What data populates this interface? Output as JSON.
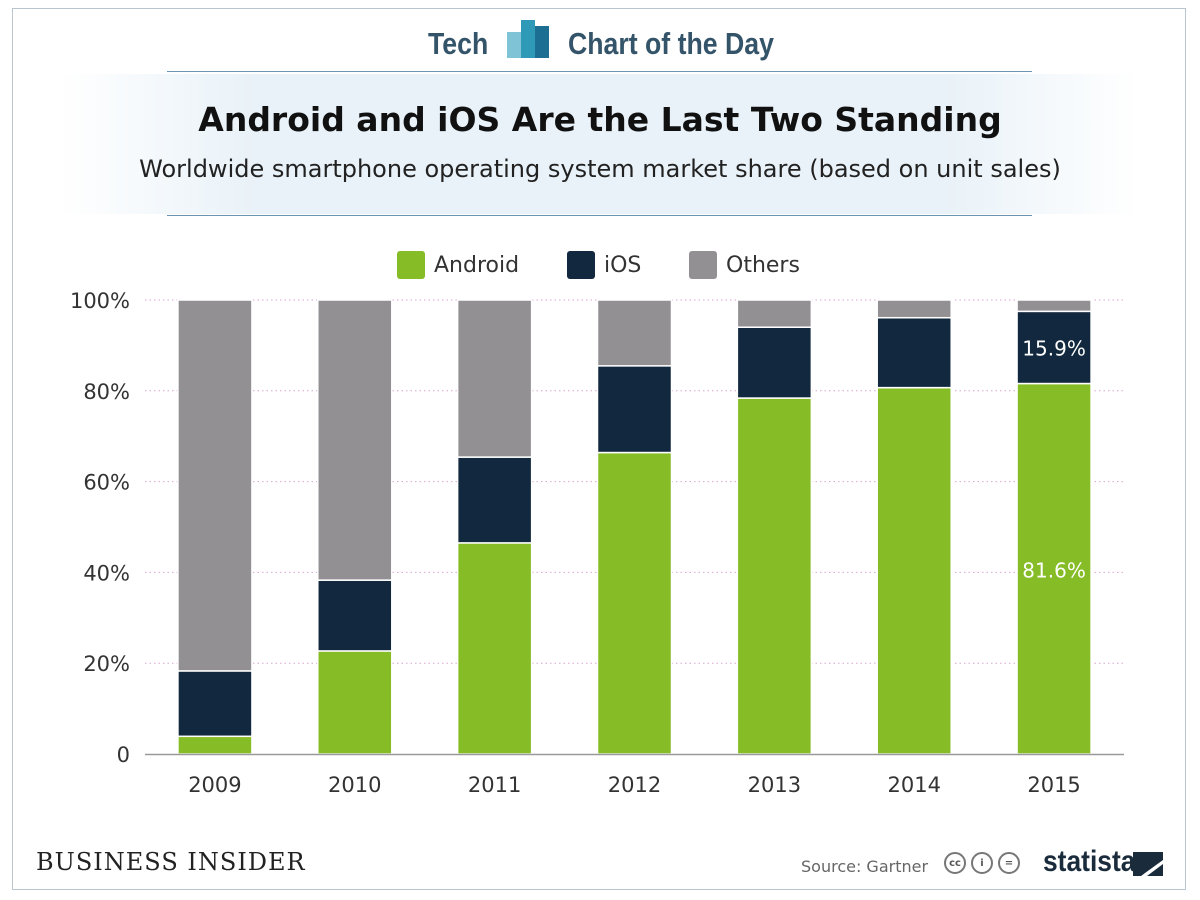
{
  "header": {
    "tech": "Tech",
    "chart_of_the_day": "Chart of the Day"
  },
  "footer": {
    "publisher": "BUSINESS INSIDER",
    "source": "Source: Gartner",
    "brand": "statista"
  },
  "colors": {
    "android": "#86bc25",
    "ios": "#11283e",
    "others": "#939094",
    "accent": "#34546a"
  },
  "chart_data": {
    "type": "bar",
    "stacked": true,
    "title": "Android and iOS Are the Last Two Standing",
    "subtitle": "Worldwide smartphone operating system market share (based on unit sales)",
    "categories": [
      "2009",
      "2010",
      "2011",
      "2012",
      "2013",
      "2014",
      "2015"
    ],
    "series": [
      {
        "name": "Android",
        "color": "#86bc25",
        "values": [
          3.9,
          22.7,
          46.5,
          66.4,
          78.4,
          80.7,
          81.6
        ]
      },
      {
        "name": "iOS",
        "color": "#11283e",
        "values": [
          14.4,
          15.6,
          18.9,
          19.1,
          15.6,
          15.4,
          15.9
        ]
      },
      {
        "name": "Others",
        "color": "#939094",
        "values": [
          81.7,
          61.7,
          34.6,
          14.5,
          6.0,
          3.9,
          2.5
        ]
      }
    ],
    "ylim": [
      0,
      100
    ],
    "yticks": [
      0,
      20,
      40,
      60,
      80,
      100
    ],
    "ytick_labels": [
      "0",
      "20%",
      "40%",
      "60%",
      "80%",
      "100%"
    ],
    "data_labels": [
      {
        "category": "2015",
        "series": "iOS",
        "text": "15.9%"
      },
      {
        "category": "2015",
        "series": "Android",
        "text": "81.6%"
      }
    ],
    "legend_position": "top-center",
    "grid": true
  }
}
